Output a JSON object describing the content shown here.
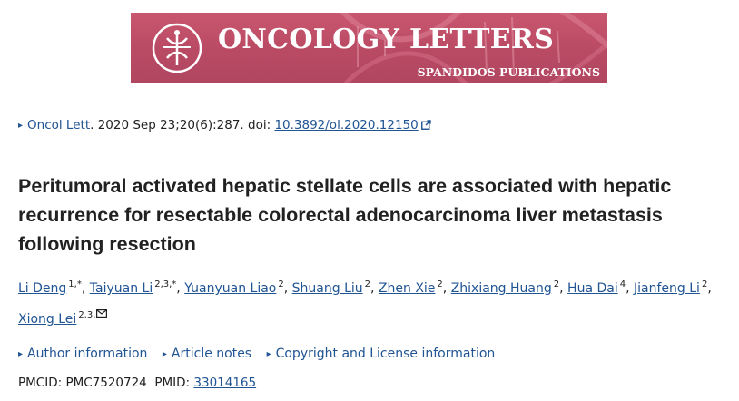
{
  "banner": {
    "journal_name": "ONCOLOGY LETTERS",
    "publisher": "SPANDIDOS PUBLICATIONS"
  },
  "citation": {
    "journal": "Oncol Lett",
    "details": ". 2020 Sep 23;20(6):287. doi: ",
    "doi": "10.3892/ol.2020.12150"
  },
  "article": {
    "title": "Peritumoral activated hepatic stellate cells are associated with hepatic recurrence for resectable colorectal adenocarcinoma liver metastasis following resection"
  },
  "authors": [
    {
      "name": "Li Deng",
      "aff": "1,*"
    },
    {
      "name": "Taiyuan Li",
      "aff": "2,3,*"
    },
    {
      "name": "Yuanyuan Liao",
      "aff": "2"
    },
    {
      "name": "Shuang Liu",
      "aff": "2"
    },
    {
      "name": "Zhen Xie",
      "aff": "2"
    },
    {
      "name": "Zhixiang Huang",
      "aff": "2"
    },
    {
      "name": "Hua Dai",
      "aff": "4"
    },
    {
      "name": "Jianfeng Li",
      "aff": "2"
    },
    {
      "name": "Xiong Lei",
      "aff": "2,3,"
    }
  ],
  "info_links": [
    "Author information",
    "Article notes",
    "Copyright and License information"
  ],
  "ids": {
    "pmcid_label": "PMCID: ",
    "pmcid": "PMC7520724",
    "pmid_label": "PMID: ",
    "pmid": "33014165"
  },
  "colors": {
    "link": "#205493",
    "banner": "#b94a64",
    "text": "#212121"
  },
  "icons": [
    "journal-emblem-icon",
    "external-link-icon",
    "mail-icon",
    "triangle-right-icon"
  ]
}
